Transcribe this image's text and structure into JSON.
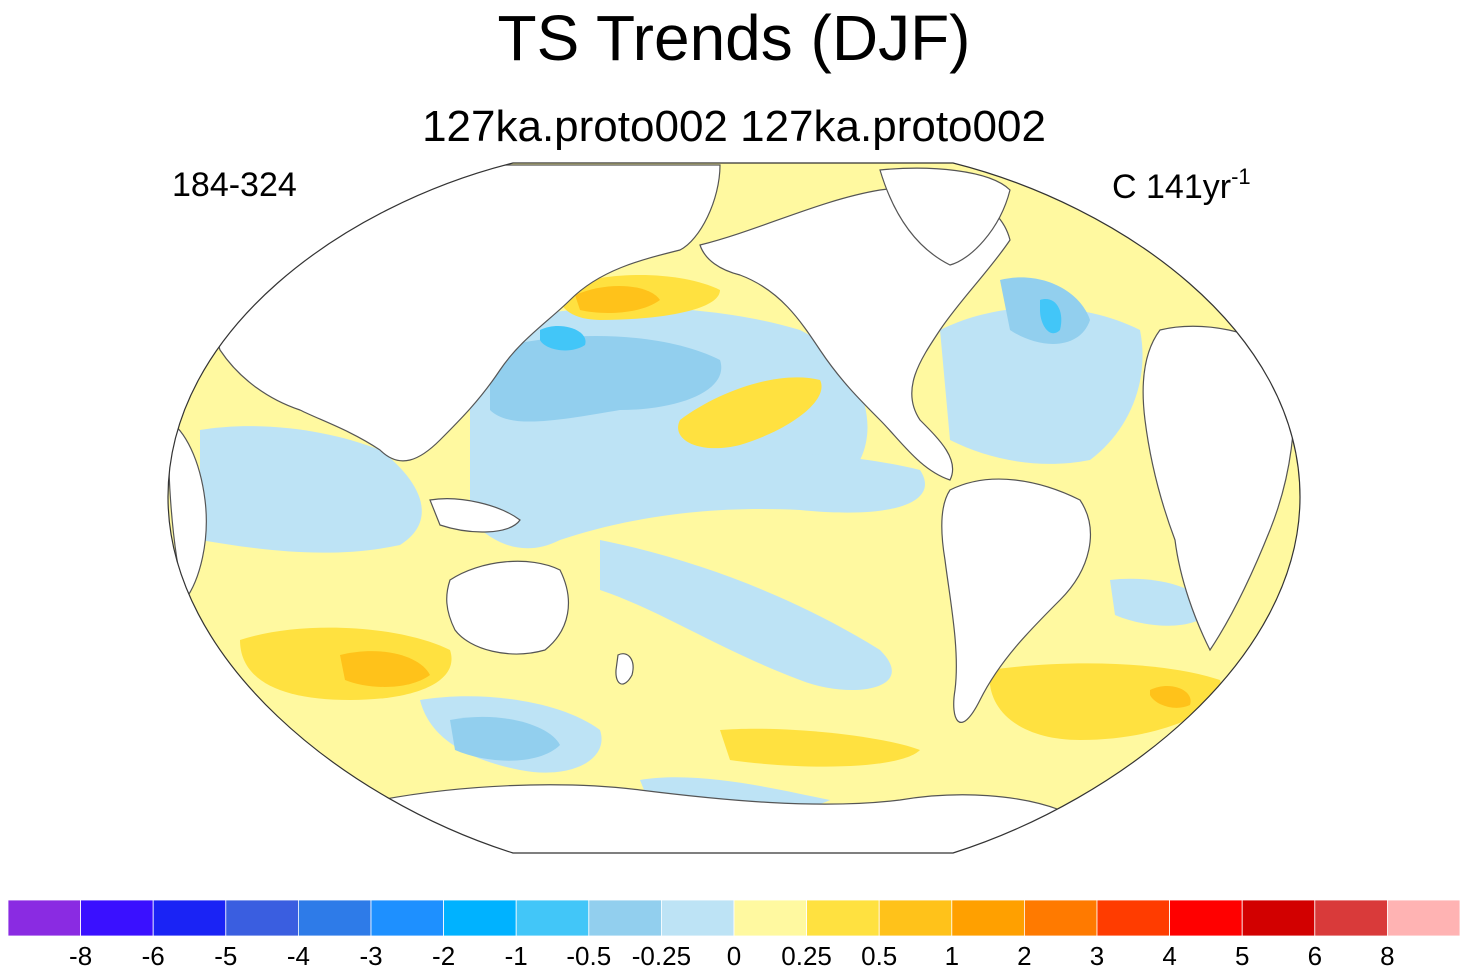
{
  "title": "TS Trends (DJF)",
  "subtitle": "127ka.proto002  127ka.proto002",
  "left_label": "184-324",
  "units": {
    "base": "C 141yr",
    "exponent": "-1"
  },
  "projection": "Robinson",
  "central_longitude": 180,
  "colorbar": {
    "colors": [
      "#8a2be2",
      "#3a10ff",
      "#1a23f5",
      "#3a5ee0",
      "#2e7be8",
      "#1e90ff",
      "#00b2ff",
      "#42c6f8",
      "#92cfee",
      "#bde3f5",
      "#fff9a0",
      "#ffe140",
      "#ffc21a",
      "#ffa000",
      "#ff7a00",
      "#ff3c00",
      "#ff0000",
      "#d20000",
      "#d93a3a",
      "#ffb3b3"
    ],
    "tick_labels": [
      "-8",
      "-6",
      "-5",
      "-4",
      "-3",
      "-2",
      "-1",
      "-0.5",
      "-0.25",
      "0",
      "0.25",
      "0.5",
      "1",
      "2",
      "3",
      "4",
      "5",
      "6",
      "8"
    ]
  },
  "map_fill": {
    "default_ocean": "#fff9a0",
    "land": "#ffffff",
    "coast_color": "#555555"
  }
}
